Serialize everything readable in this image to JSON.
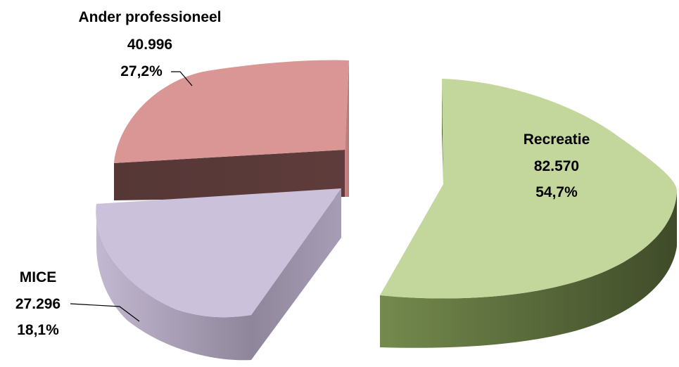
{
  "chart_data": {
    "type": "pie",
    "title": "",
    "unit": "",
    "legend": "none",
    "slices": [
      {
        "name": "Recreatie",
        "value": 82570,
        "value_label": "82.570",
        "percent": 54.7,
        "percent_label": "54,7%",
        "color": "#c3d69b",
        "side_color": "#5a6b3b"
      },
      {
        "name": "MICE",
        "value": 27296,
        "value_label": "27.296",
        "percent": 18.1,
        "percent_label": "18,1%",
        "color": "#ccc1da",
        "side_color": "#8e8599"
      },
      {
        "name": "Ander professioneel",
        "value": 40996,
        "value_label": "40.996",
        "percent": 27.2,
        "percent_label": "27,2%",
        "color": "#d99694",
        "side_color": "#5a3a3a"
      }
    ]
  }
}
